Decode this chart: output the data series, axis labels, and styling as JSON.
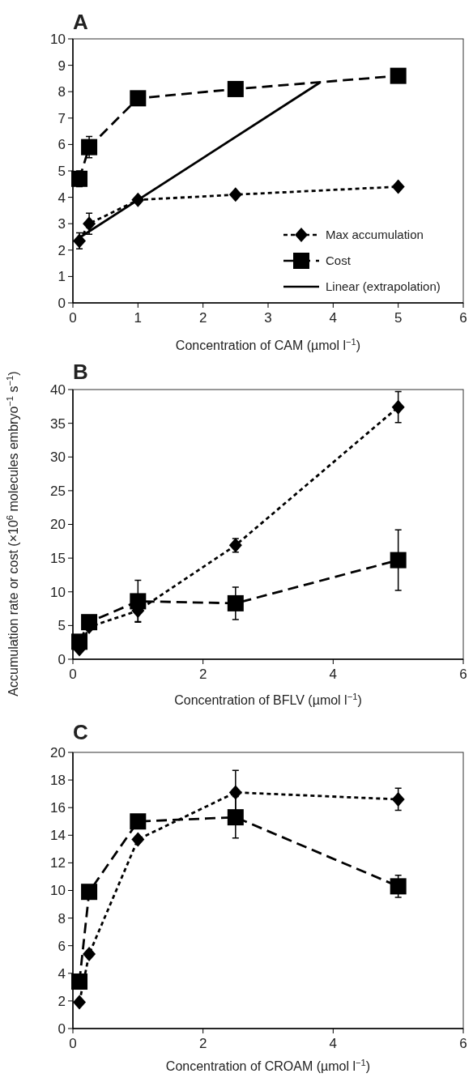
{
  "chart_data": [
    {
      "type": "line",
      "title": "A",
      "xlabel": "Concentration of CAM (µmol l$^{−1}$)",
      "xlim": [
        0,
        6
      ],
      "xticks": [
        0,
        1,
        2,
        3,
        4,
        5,
        6
      ],
      "ylim": [
        0,
        10
      ],
      "yticks": [
        0,
        1,
        2,
        3,
        4,
        5,
        6,
        7,
        8,
        9,
        10
      ],
      "legend": "bottom right",
      "grid": false,
      "x": [
        0.1,
        0.25,
        1,
        2.5,
        5
      ],
      "series": [
        {
          "name": "Max accumulation",
          "color": "#000000",
          "marker": "diamond",
          "line_style": "dotted",
          "values": [
            2.35,
            3.0,
            3.9,
            4.1,
            4.4
          ],
          "errors": [
            0.3,
            0.4,
            null,
            null,
            null
          ]
        },
        {
          "name": "Cost",
          "color": "#000000",
          "marker": "square",
          "line_style": "dashed",
          "values": [
            4.7,
            5.9,
            7.75,
            8.1,
            8.6
          ],
          "errors": [
            0.3,
            0.4,
            null,
            null,
            null
          ]
        },
        {
          "name": "Linear (extrapolation)",
          "color": "#000000",
          "marker": "none",
          "line_style": "solid",
          "x": [
            0.1,
            3.8
          ],
          "values": [
            2.47,
            8.35
          ]
        }
      ]
    },
    {
      "type": "line",
      "title": "B",
      "xlabel": "Concentration of BFLV (µmol l$^{−1}$)",
      "ylabel": "Accumulation rate or cost (×10$^{6}$ molecules embryo$^{−1}$ s$^{−1}$)",
      "xlim": [
        0,
        6
      ],
      "xticks": [
        0,
        2,
        4,
        6
      ],
      "ylim": [
        0,
        40
      ],
      "yticks": [
        0,
        5,
        10,
        15,
        20,
        25,
        30,
        35,
        40
      ],
      "grid": false,
      "x": [
        0.1,
        0.25,
        1,
        2.5,
        5
      ],
      "series": [
        {
          "color": "#000000",
          "marker": "diamond",
          "line_style": "dotted",
          "values": [
            1.5,
            4.8,
            7.2,
            16.9,
            37.4
          ],
          "errors": [
            null,
            null,
            1.6,
            1.0,
            2.3
          ]
        },
        {
          "color": "#000000",
          "marker": "square",
          "line_style": "dashed",
          "values": [
            2.6,
            5.5,
            8.6,
            8.3,
            14.7
          ],
          "errors": [
            null,
            null,
            3.1,
            2.4,
            4.5
          ]
        }
      ]
    },
    {
      "type": "line",
      "title": "C",
      "xlabel": "Concentration of CROAM (µmol l$^{−1}$)",
      "xlim": [
        0,
        6
      ],
      "xticks": [
        0,
        2,
        4,
        6
      ],
      "ylim": [
        0,
        20
      ],
      "yticks": [
        0,
        2,
        4,
        6,
        8,
        10,
        12,
        14,
        16,
        18,
        20
      ],
      "grid": false,
      "x": [
        0.1,
        0.25,
        1,
        2.5,
        5
      ],
      "series": [
        {
          "color": "#000000",
          "marker": "diamond",
          "line_style": "dotted",
          "values": [
            1.9,
            5.4,
            13.7,
            17.1,
            16.6
          ],
          "errors": [
            null,
            null,
            null,
            1.6,
            0.8
          ]
        },
        {
          "color": "#000000",
          "marker": "square",
          "line_style": "dashed",
          "values": [
            3.4,
            9.9,
            15.0,
            15.3,
            10.3
          ],
          "errors": [
            null,
            null,
            null,
            1.5,
            0.8
          ]
        }
      ]
    }
  ]
}
